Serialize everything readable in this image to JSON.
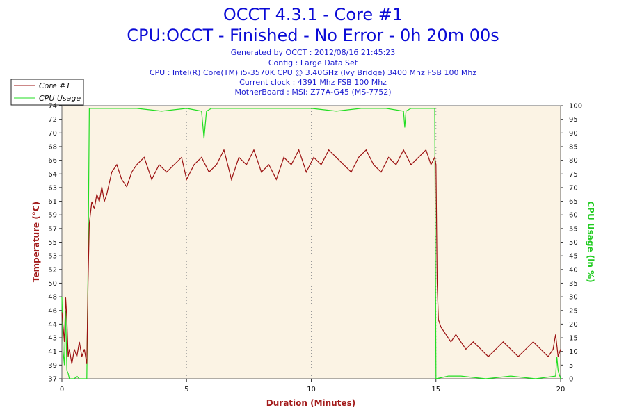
{
  "chart_data": {
    "type": "line",
    "title": "OCCT 4.3.1 - Core #1",
    "subtitle": "CPU:OCCT - Finished - No Error - 0h 20m 00s",
    "info_lines": [
      "Generated by OCCT : 2012/08/16 21:45:23",
      "Config : Large Data Set",
      "CPU : Intel(R) Core(TM) i5-3570K CPU @ 3.40GHz (Ivy Bridge) 3400 Mhz FSB 100 Mhz",
      "Current clock : 4391 Mhz FSB 100 Mhz",
      "MotherBoard : MSI: Z77A-G45 (MS-7752)"
    ],
    "xlabel": "Duration (Minutes)",
    "ylabel_left": "Temperature (°C)",
    "ylabel_right": "CPU Usage (in %)",
    "xlim": [
      0,
      20
    ],
    "x_ticks": [
      "0",
      "5",
      "10",
      "15",
      "20"
    ],
    "ylim_left": [
      37,
      74
    ],
    "y_ticks_left": [
      "37",
      "39",
      "41",
      "43",
      "44",
      "46",
      "48",
      "50",
      "52",
      "53",
      "55",
      "57",
      "59",
      "61",
      "63",
      "64",
      "66",
      "68",
      "70",
      "72",
      "74"
    ],
    "ylim_right": [
      0,
      100
    ],
    "y_ticks_right": [
      "0",
      "5",
      "10",
      "15",
      "20",
      "25",
      "30",
      "35",
      "40",
      "45",
      "50",
      "55",
      "60",
      "65",
      "70",
      "75",
      "80",
      "85",
      "90",
      "95",
      "100"
    ],
    "grid": true,
    "legend_position": "top-left",
    "colors": {
      "temperature": "#9b1010",
      "usage": "#22dd22",
      "plot_bg": "#fbf3e4",
      "title": "#0b0bd6"
    },
    "series": [
      {
        "name": "Core #1",
        "axis": "left",
        "x": [
          0,
          0.05,
          0.1,
          0.15,
          0.2,
          0.25,
          0.3,
          0.4,
          0.5,
          0.6,
          0.7,
          0.8,
          0.9,
          1.0,
          1.05,
          1.1,
          1.2,
          1.3,
          1.4,
          1.5,
          1.6,
          1.7,
          1.8,
          2.0,
          2.2,
          2.4,
          2.6,
          2.8,
          3.0,
          3.3,
          3.6,
          3.9,
          4.2,
          4.5,
          4.8,
          5.0,
          5.3,
          5.6,
          5.9,
          6.2,
          6.5,
          6.8,
          7.1,
          7.4,
          7.7,
          8.0,
          8.3,
          8.6,
          8.9,
          9.2,
          9.5,
          9.8,
          10.1,
          10.4,
          10.7,
          11.0,
          11.3,
          11.6,
          11.9,
          12.2,
          12.5,
          12.8,
          13.1,
          13.4,
          13.7,
          14.0,
          14.3,
          14.6,
          14.8,
          14.95,
          15.0,
          15.05,
          15.1,
          15.2,
          15.4,
          15.6,
          15.8,
          16.0,
          16.2,
          16.5,
          16.8,
          17.1,
          17.4,
          17.7,
          18.0,
          18.3,
          18.6,
          18.9,
          19.2,
          19.5,
          19.7,
          19.8,
          19.9,
          20.0
        ],
        "values": [
          46,
          44,
          42,
          48,
          45,
          40,
          41,
          39,
          41,
          40,
          42,
          40,
          41,
          39,
          50,
          58,
          61,
          60,
          62,
          61,
          63,
          61,
          62,
          65,
          66,
          64,
          63,
          65,
          66,
          67,
          64,
          66,
          65,
          66,
          67,
          64,
          66,
          67,
          65,
          66,
          68,
          64,
          67,
          66,
          68,
          65,
          66,
          64,
          67,
          66,
          68,
          65,
          67,
          66,
          68,
          67,
          66,
          65,
          67,
          68,
          66,
          65,
          67,
          66,
          68,
          66,
          67,
          68,
          66,
          67,
          66,
          50,
          45,
          44,
          43,
          42,
          43,
          42,
          41,
          42,
          41,
          40,
          41,
          42,
          41,
          40,
          41,
          42,
          41,
          40,
          41,
          43,
          40,
          41
        ]
      },
      {
        "name": "CPU Usage",
        "axis": "right",
        "x": [
          0,
          0.05,
          0.1,
          0.15,
          0.2,
          0.25,
          0.3,
          0.4,
          0.5,
          0.6,
          0.7,
          0.8,
          0.9,
          0.95,
          1.0,
          1.05,
          1.1,
          2.0,
          3.0,
          4.0,
          5.0,
          5.6,
          5.7,
          5.8,
          6.0,
          7.0,
          8.0,
          9.0,
          10.0,
          11.0,
          12.0,
          13.0,
          13.7,
          13.75,
          13.8,
          14.0,
          14.9,
          14.95,
          15.0,
          15.5,
          16.0,
          17.0,
          18.0,
          19.0,
          19.8,
          19.85,
          19.9,
          20.0
        ],
        "values": [
          30,
          10,
          5,
          25,
          3,
          2,
          0,
          0,
          0,
          1,
          0,
          0,
          0,
          0,
          0,
          40,
          99,
          99,
          99,
          98,
          99,
          98,
          88,
          98,
          99,
          99,
          99,
          99,
          99,
          98,
          99,
          99,
          98,
          92,
          98,
          99,
          99,
          99,
          0,
          1,
          1,
          0,
          1,
          0,
          1,
          8,
          3,
          0
        ]
      }
    ]
  }
}
